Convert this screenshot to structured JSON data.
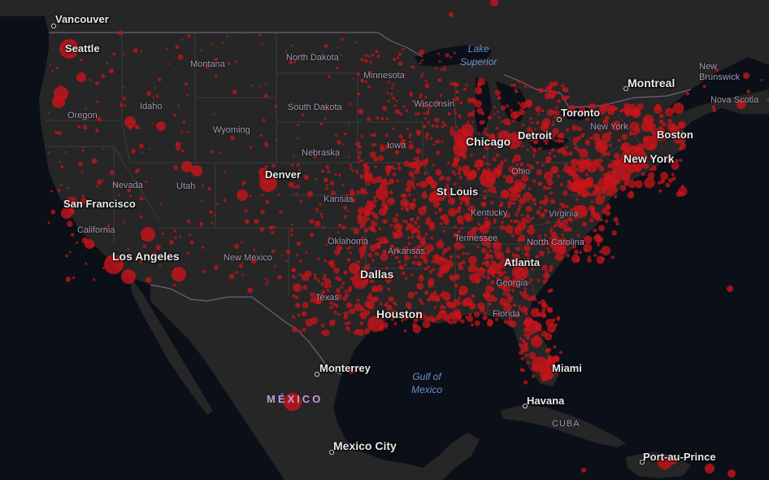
{
  "colors": {
    "ocean": "#0b1018",
    "land": "#262626",
    "border": "#3a3a3a",
    "intl_border": "#6a6480",
    "case_dot": "#c8141a"
  },
  "map": {
    "cities": {
      "vancouver": "Vancouver",
      "seattle": "Seattle",
      "montreal": "Montreal",
      "toronto": "Toronto",
      "detroit": "Detroit",
      "chicago": "Chicago",
      "boston": "Boston",
      "new_york": "New York",
      "denver": "Denver",
      "st_louis": "St Louis",
      "san_francisco": "San Francisco",
      "los_angeles": "Los Angeles",
      "dallas": "Dallas",
      "houston": "Houston",
      "atlanta": "Atlanta",
      "miami": "Miami",
      "monterrey": "Monterrey",
      "havana": "Havana",
      "mexico_city": "Mexico City",
      "port_au_prince": "Port-au-Prince"
    },
    "states": {
      "montana": "Montana",
      "north_dakota": "North Dakota",
      "minnesota": "Minnesota",
      "wisconsin": "Wisconsin",
      "idaho": "Idaho",
      "oregon": "Oregon",
      "south_dakota": "South Dakota",
      "wyoming": "Wyoming",
      "nebraska": "Nebraska",
      "iowa": "Iowa",
      "ohio": "Ohio",
      "new_york_state": "New York",
      "nevada": "Nevada",
      "utah": "Utah",
      "kansas": "Kansas",
      "kentucky": "Kentucky",
      "virginia": "Virginia",
      "california": "California",
      "oklahoma": "Oklahoma",
      "tennessee": "Tennessee",
      "north_carolina": "North Carolina",
      "arkansas": "Arkansas",
      "new_mexico": "New Mexico",
      "georgia": "Georgia",
      "texas": "Texas",
      "florida": "Florida",
      "new_brunswick": "New\nBrunswick",
      "nova_scotia": "Nova Scotia",
      "cuba": "CUBA"
    },
    "countries": {
      "mexico": "MÉXICO"
    },
    "water": {
      "lake_superior": "Lake\nSuperior",
      "gulf_of_mexico": "Gulf of\nMexico"
    }
  }
}
